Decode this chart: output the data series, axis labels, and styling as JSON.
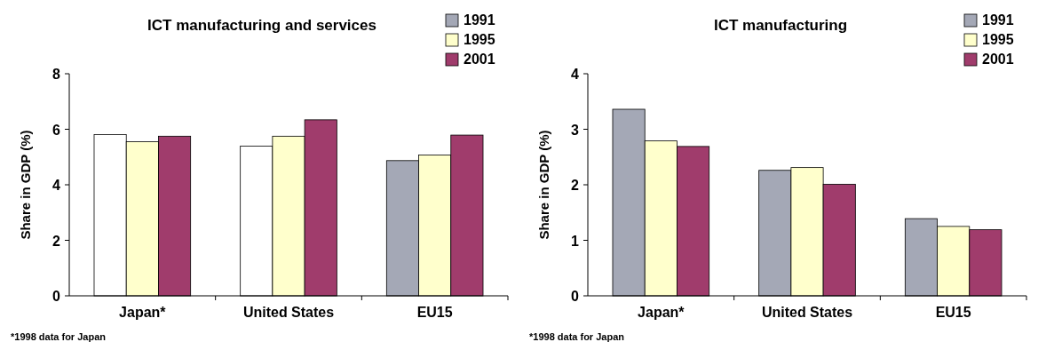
{
  "chart_data": [
    {
      "type": "bar",
      "title": "ICT manufacturing and services",
      "ylabel": "Share in GDP (%)",
      "categories": [
        "Japan*",
        "United States",
        "EU15"
      ],
      "series": [
        {
          "name": "1991",
          "color": "#a4a8b6",
          "colors": [
            "#ffffff",
            "#ffffff",
            "#a4a8b6"
          ],
          "values": [
            5.81,
            5.39,
            4.87
          ]
        },
        {
          "name": "1995",
          "color": "#ffffcc",
          "values": [
            5.55,
            5.75,
            5.07
          ]
        },
        {
          "name": "2001",
          "color": "#a03c6c",
          "values": [
            5.75,
            6.34,
            5.79
          ]
        }
      ],
      "ylim": [
        0,
        8
      ],
      "yticks": [
        0,
        2,
        4,
        6,
        8
      ],
      "legend": "top right",
      "annotations": [
        "*1998 data for Japan"
      ]
    },
    {
      "type": "bar",
      "title": "ICT manufacturing",
      "ylabel": "Share in GDP (%)",
      "categories": [
        "Japan*",
        "United States",
        "EU15"
      ],
      "series": [
        {
          "name": "1991",
          "color": "#a4a8b6",
          "values": [
            3.36,
            2.26,
            1.39
          ]
        },
        {
          "name": "1995",
          "color": "#ffffcc",
          "values": [
            2.79,
            2.31,
            1.25
          ]
        },
        {
          "name": "2001",
          "color": "#a03c6c",
          "values": [
            2.69,
            2.01,
            1.19
          ]
        }
      ],
      "ylim": [
        0,
        4
      ],
      "yticks": [
        0,
        1,
        2,
        3,
        4
      ],
      "legend": "top right",
      "annotations": [
        "*1998 data for Japan"
      ]
    }
  ]
}
